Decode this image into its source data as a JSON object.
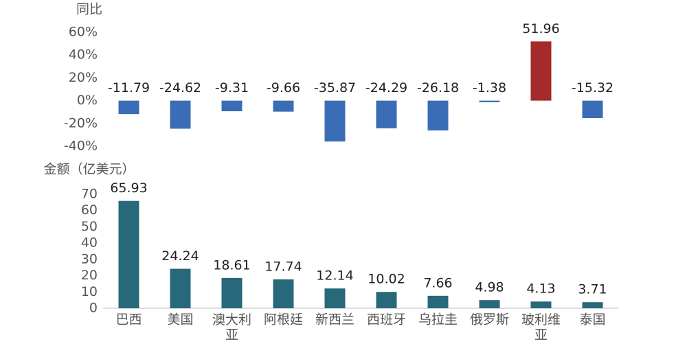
{
  "chart_data": [
    {
      "type": "bar",
      "y_label": "同比",
      "values": [
        -11.79,
        -24.62,
        -9.31,
        -9.66,
        -35.87,
        -24.29,
        -26.18,
        -1.38,
        51.96,
        -15.32
      ],
      "colors": [
        "#3a6db5",
        "#3a6db5",
        "#3a6db5",
        "#3a6db5",
        "#3a6db5",
        "#3a6db5",
        "#3a6db5",
        "#3a6db5",
        "#a52a2a",
        "#3a6db5"
      ],
      "ylim": [
        -40,
        60
      ],
      "yticks": [
        {
          "value": 60,
          "label": "60%"
        },
        {
          "value": 40,
          "label": "40%"
        },
        {
          "value": 20,
          "label": "20%"
        },
        {
          "value": 0,
          "label": "0%"
        },
        {
          "value": -20,
          "label": "-20%"
        },
        {
          "value": -40,
          "label": "-40%"
        }
      ]
    },
    {
      "type": "bar",
      "y_label": "金额（亿美元）",
      "categories": [
        "巴西",
        "美国",
        "澳大利亚",
        "阿根廷",
        "新西兰",
        "西班牙",
        "乌拉圭",
        "俄罗斯",
        "玻利维亚",
        "泰国"
      ],
      "values": [
        65.93,
        24.24,
        18.61,
        17.74,
        12.14,
        10.02,
        7.66,
        4.98,
        4.13,
        3.71
      ],
      "color": "#27687a",
      "ylim": [
        0,
        70
      ],
      "yticks": [
        0,
        10,
        20,
        30,
        40,
        50,
        60,
        70
      ]
    }
  ]
}
